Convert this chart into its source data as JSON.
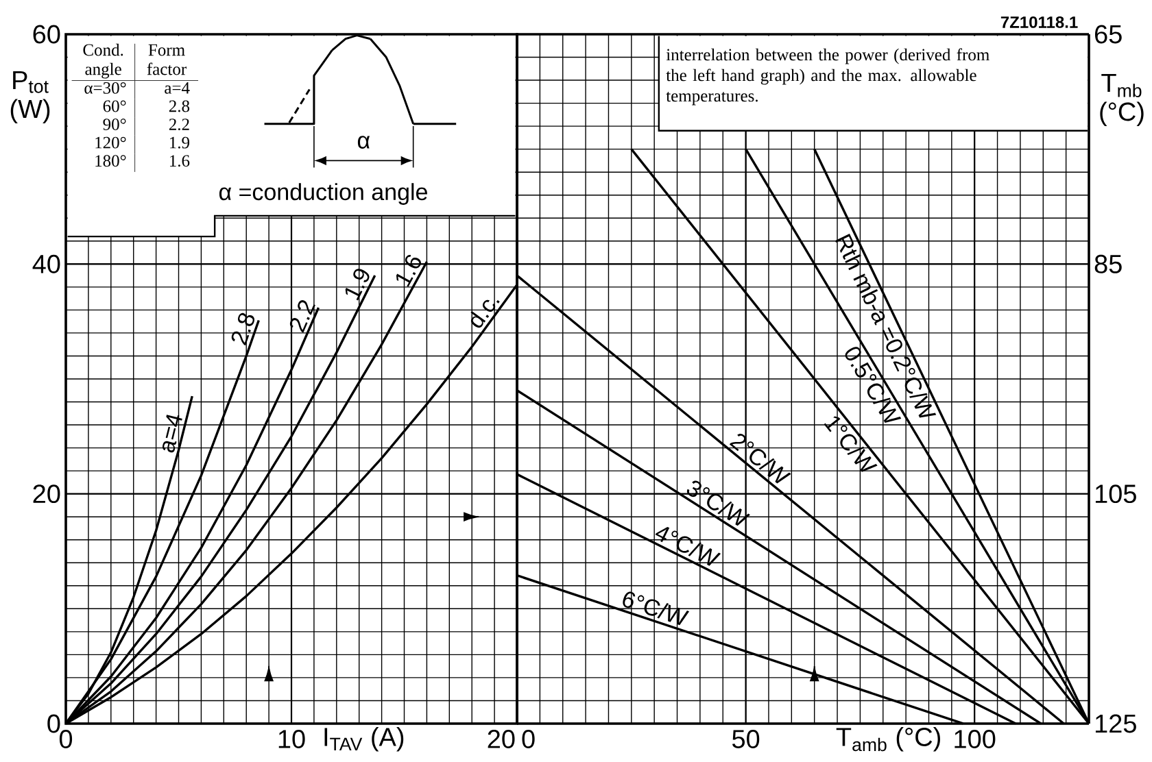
{
  "chart_data": [
    {
      "type": "line",
      "xlabel": "I$_{TAV}$ (A)",
      "ylabel": "P$_{tot}$ (W)",
      "xlim": [
        0,
        20
      ],
      "xticks": [
        0,
        10,
        20
      ],
      "ylim": [
        0,
        60
      ],
      "yticks": [
        0,
        20,
        40,
        60
      ],
      "grid": true,
      "series": [
        {
          "name": "a=4",
          "color": "#000000",
          "x": [
            0,
            1,
            2,
            3,
            4,
            5,
            5.6
          ],
          "values": [
            0,
            2.6,
            6.2,
            11,
            16.8,
            23.8,
            28.5
          ]
        },
        {
          "name": "2.8",
          "color": "#000000",
          "x": [
            0,
            2,
            4,
            6,
            8,
            8.55
          ],
          "values": [
            0,
            5.6,
            12.8,
            21.6,
            32,
            35.1
          ]
        },
        {
          "name": "2.2",
          "color": "#000000",
          "x": [
            0,
            2,
            4,
            6,
            8,
            10,
            11.2
          ],
          "values": [
            0,
            4.1,
            9.2,
            15.3,
            22.5,
            30.8,
            36.2
          ]
        },
        {
          "name": "1.9",
          "color": "#000000",
          "x": [
            0,
            2,
            4,
            6,
            8,
            10,
            12,
            13.7
          ],
          "values": [
            0,
            3.5,
            7.8,
            12.8,
            18.6,
            25,
            32.3,
            39
          ]
        },
        {
          "name": "1.6",
          "color": "#000000",
          "x": [
            0,
            2,
            4,
            6,
            8,
            10,
            12,
            14,
            16
          ],
          "values": [
            0,
            2.8,
            6.3,
            10.4,
            15.1,
            20.5,
            26.4,
            33,
            40.2
          ]
        },
        {
          "name": "d.c.",
          "color": "#000000",
          "x": [
            0,
            2,
            4,
            6,
            8,
            10,
            12,
            14,
            16,
            18,
            20
          ],
          "values": [
            0,
            2.3,
            4.9,
            7.8,
            11.1,
            14.8,
            18.8,
            23.1,
            27.8,
            32.8,
            38.2
          ]
        }
      ],
      "annotations": [
        "Cond. angle",
        "Form factor",
        "α=30°",
        "60°",
        "90°",
        "120°",
        "180°",
        "a=4",
        "2.8",
        "2.2",
        "1.9",
        "1.6",
        "α",
        "α =conduction angle"
      ]
    },
    {
      "type": "line",
      "xlabel": "T$_{amb}$ (°C)",
      "y2label": "T$_{mb}$ (°C)",
      "xlim": [
        0,
        125
      ],
      "xticks": [
        0,
        50,
        100
      ],
      "ylim": [
        0,
        60
      ],
      "y2lim": [
        125,
        65
      ],
      "y2ticks": [
        65,
        85,
        105,
        125
      ],
      "grid": true,
      "series": [
        {
          "name": "Rth mb-a =0.2°C/W",
          "color": "#000000",
          "x": [
            65,
            125
          ],
          "values": [
            50,
            0
          ]
        },
        {
          "name": "0.5°C/W",
          "color": "#000000",
          "x": [
            50,
            125
          ],
          "values": [
            50,
            0
          ]
        },
        {
          "name": "1°C/W",
          "color": "#000000",
          "x": [
            25,
            125
          ],
          "values": [
            50,
            0
          ]
        },
        {
          "name": "2°C/W",
          "color": "#000000",
          "x": [
            0,
            119.5
          ],
          "values": [
            39,
            0
          ]
        },
        {
          "name": "3°C/W",
          "color": "#000000",
          "x": [
            0,
            114.5
          ],
          "values": [
            29,
            0
          ]
        },
        {
          "name": "4°C/W",
          "color": "#000000",
          "x": [
            0,
            109
          ],
          "values": [
            21.7,
            0
          ]
        },
        {
          "name": "6°C/W",
          "color": "#000000",
          "x": [
            0,
            97.5
          ],
          "values": [
            12.9,
            0
          ]
        }
      ],
      "annotations": [
        "interrelation between the power (derived from the left hand graph) and the max. allowable temperatures.",
        "7Z10118.1"
      ]
    }
  ]
}
